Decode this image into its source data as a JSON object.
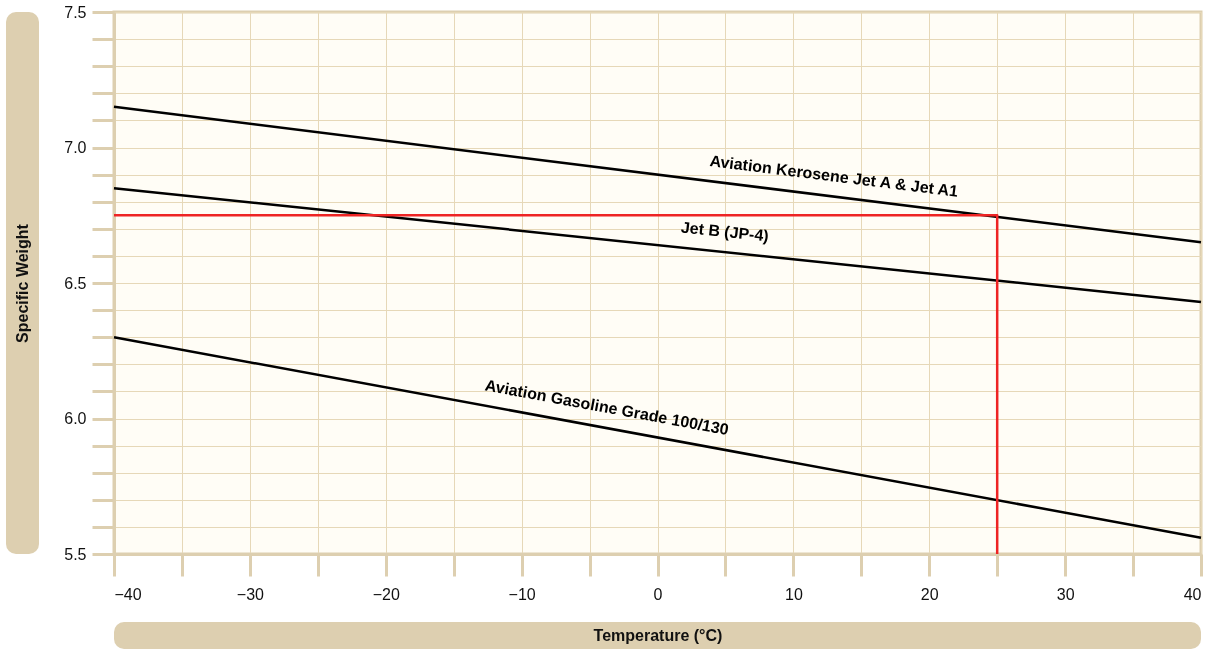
{
  "chart_data": {
    "type": "line",
    "xlabel": "Temperature (°C)",
    "ylabel": "Specific Weight",
    "xlim": [
      -40,
      40
    ],
    "ylim": [
      5.5,
      7.5
    ],
    "xticks": [
      {
        "value": -40,
        "label": "−40"
      },
      {
        "value": -35,
        "label": null
      },
      {
        "value": -30,
        "label": "−30"
      },
      {
        "value": -25,
        "label": null
      },
      {
        "value": -20,
        "label": "−20"
      },
      {
        "value": -15,
        "label": null
      },
      {
        "value": -10,
        "label": "−10"
      },
      {
        "value": -5,
        "label": null
      },
      0,
      {
        "value": 5,
        "label": null
      },
      10,
      {
        "value": 15,
        "label": null
      },
      20,
      {
        "value": 25,
        "label": null
      },
      30,
      {
        "value": 35,
        "label": null
      },
      40
    ],
    "yticks": [
      5.5,
      {
        "value": 5.6,
        "label": null
      },
      {
        "value": 5.7,
        "label": null
      },
      {
        "value": 5.8,
        "label": null
      },
      {
        "value": 5.9,
        "label": null
      },
      {
        "value": 6,
        "label": "6.0"
      },
      {
        "value": 6.1,
        "label": null
      },
      {
        "value": 6.2,
        "label": null
      },
      {
        "value": 6.3,
        "label": null
      },
      {
        "value": 6.4,
        "label": null
      },
      6.5,
      {
        "value": 6.6,
        "label": null
      },
      {
        "value": 6.7,
        "label": null
      },
      {
        "value": 6.8,
        "label": null
      },
      {
        "value": 6.9,
        "label": null
      },
      {
        "value": 7,
        "label": "7.0"
      },
      {
        "value": 7.1,
        "label": null
      },
      {
        "value": 7.2,
        "label": null
      },
      {
        "value": 7.3,
        "label": null
      },
      {
        "value": 7.4,
        "label": null
      },
      7.5
    ],
    "grid": true,
    "marker": "none",
    "line_style": "solid",
    "series": [
      {
        "name": "Aviation Kerosene Jet A & Jet A1",
        "color": "#000000",
        "x": [
          -40,
          40
        ],
        "values": [
          7.15,
          6.65
        ]
      },
      {
        "name": "Jet B (JP-4)",
        "color": "#000000",
        "x": [
          -40,
          40
        ],
        "values": [
          6.85,
          6.43
        ]
      },
      {
        "name": "Aviation Gasoline Grade 100/130",
        "color": "#000000",
        "x": [
          -40,
          40
        ],
        "values": [
          6.3,
          5.56
        ]
      },
      {
        "type": "line",
        "color": "#ee2424",
        "x": [
          -40,
          25,
          25
        ],
        "values": [
          6.75,
          6.75,
          5.5
        ]
      }
    ]
  }
}
